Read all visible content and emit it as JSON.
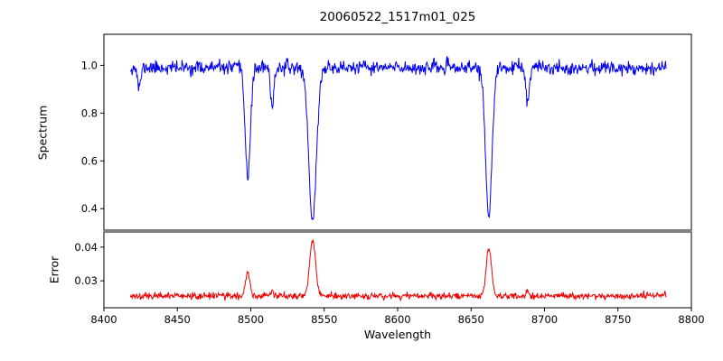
{
  "figure": {
    "title": "20060522_1517m01_025",
    "xlabel": "Wavelength",
    "background": "#ffffff"
  },
  "chart_data": [
    {
      "type": "line",
      "title": "20060522_1517m01_025",
      "ylabel": "Spectrum",
      "xlabel": "Wavelength",
      "color": "#0000ee",
      "legend": "none",
      "grid": false,
      "xlim": [
        8400,
        8800
      ],
      "ylim": [
        0.31,
        1.13
      ],
      "xticks": [
        8400,
        8450,
        8500,
        8550,
        8600,
        8650,
        8700,
        8750,
        8800
      ],
      "xtick_labels": [
        "8400",
        "8450",
        "8500",
        "8550",
        "8600",
        "8650",
        "8700",
        "8750",
        "8800"
      ],
      "yticks": [
        0.4,
        0.6,
        0.8,
        1.0
      ],
      "ytick_labels": [
        "0.4",
        "0.6",
        "0.8",
        "1.0"
      ],
      "x_data_range": [
        8418,
        8783
      ],
      "model": {
        "description": "noisy stellar continuum near 1.0 with Ca II triplet absorption lines",
        "continuum": 0.99,
        "noise_sigma": 0.014,
        "lines": [
          {
            "center": 8424.0,
            "depth": 0.09,
            "sigma": 1.0
          },
          {
            "center": 8498.0,
            "depth": 0.45,
            "sigma": 1.8
          },
          {
            "center": 8514.5,
            "depth": 0.16,
            "sigma": 1.2
          },
          {
            "center": 8542.1,
            "depth": 0.64,
            "sigma": 2.6
          },
          {
            "center": 8662.1,
            "depth": 0.62,
            "sigma": 2.2
          },
          {
            "center": 8688.5,
            "depth": 0.15,
            "sigma": 1.2
          }
        ]
      }
    },
    {
      "type": "line",
      "ylabel": "Error",
      "xlabel": "Wavelength",
      "color": "#ee0000",
      "legend": "none",
      "grid": false,
      "xlim": [
        8400,
        8800
      ],
      "ylim": [
        0.022,
        0.0445
      ],
      "xticks": [
        8400,
        8450,
        8500,
        8550,
        8600,
        8650,
        8700,
        8750,
        8800
      ],
      "xtick_labels": [
        "8400",
        "8450",
        "8500",
        "8550",
        "8600",
        "8650",
        "8700",
        "8750",
        "8800"
      ],
      "yticks": [
        0.03,
        0.04
      ],
      "ytick_labels": [
        "0.03",
        "0.04"
      ],
      "x_data_range": [
        8418,
        8783
      ],
      "model": {
        "description": "error spectrum: flat baseline with peaks at the absorption-line wavelengths",
        "baseline": 0.0255,
        "noise_sigma": 0.0005,
        "peaks": [
          {
            "center": 8498.0,
            "height": 0.0068,
            "sigma": 1.5
          },
          {
            "center": 8514.5,
            "height": 0.0016,
            "sigma": 1.1
          },
          {
            "center": 8542.1,
            "height": 0.0168,
            "sigma": 2.0
          },
          {
            "center": 8662.1,
            "height": 0.014,
            "sigma": 1.8
          },
          {
            "center": 8688.5,
            "height": 0.0016,
            "sigma": 1.1
          }
        ]
      }
    }
  ]
}
